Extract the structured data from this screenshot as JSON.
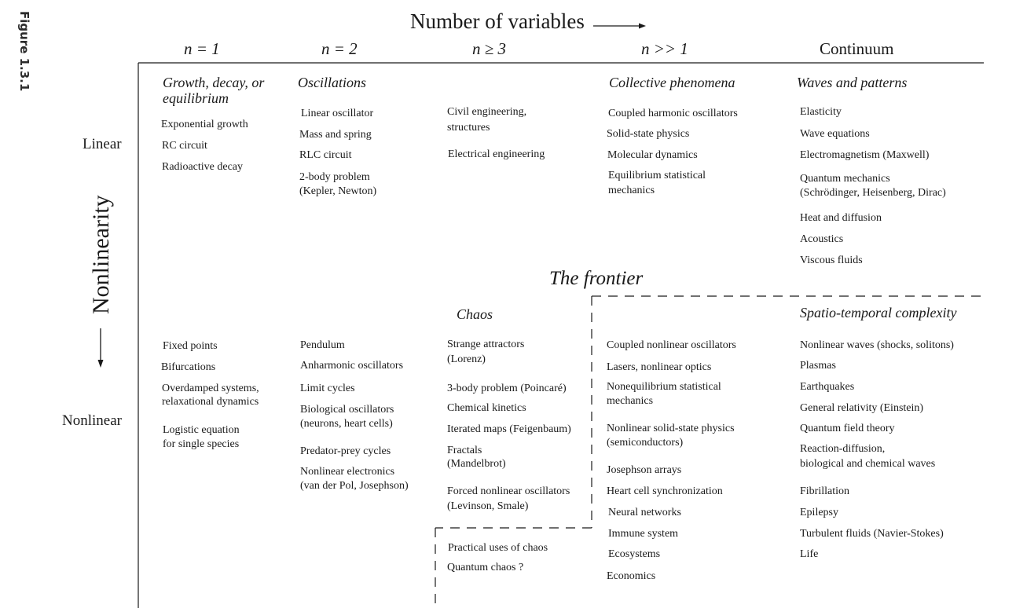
{
  "figure_label": "Figure 1.3.1",
  "top_axis": {
    "title": "Number of variables"
  },
  "side_axis": {
    "title": "Nonlinearity"
  },
  "columns": [
    "n = 1",
    "n = 2",
    "n ≥ 3",
    "n >> 1",
    "Continuum"
  ],
  "rows": {
    "linear": "Linear",
    "nonlinear": "Nonlinear"
  },
  "frontier": "The frontier",
  "linear_cells": {
    "n1": {
      "heading": [
        "Growth, decay, or",
        "equilibrium"
      ],
      "items": [
        "Exponential growth",
        "RC circuit",
        "Radioactive decay"
      ]
    },
    "n2": {
      "heading": [
        "Oscillations"
      ],
      "items": [
        "Linear oscillator",
        "Mass and spring",
        "RLC circuit",
        "2-body problem",
        "(Kepler, Newton)"
      ]
    },
    "n3": {
      "items": [
        "Civil engineering,",
        "structures",
        "Electrical engineering"
      ]
    },
    "nmany": {
      "heading": [
        "Collective phenomena"
      ],
      "items": [
        "Coupled harmonic oscillators",
        "Solid-state physics",
        "Molecular dynamics",
        "Equilibrium statistical",
        "mechanics"
      ]
    },
    "continuum": {
      "heading": [
        "Waves and patterns"
      ],
      "items": [
        "Elasticity",
        "Wave equations",
        "Electromagnetism (Maxwell)",
        "Quantum mechanics",
        "(Schrödinger, Heisenberg, Dirac)",
        "Heat and diffusion",
        "Acoustics",
        "Viscous fluids"
      ]
    }
  },
  "nonlinear_cells": {
    "n1": {
      "items": [
        "Fixed points",
        "Bifurcations",
        "Overdamped systems,",
        "relaxational dynamics",
        "Logistic equation",
        "for single species"
      ]
    },
    "n2": {
      "items": [
        "Pendulum",
        "Anharmonic oscillators",
        "Limit cycles",
        "Biological oscillators",
        "(neurons, heart cells)",
        "Predator-prey cycles",
        "Nonlinear electronics",
        "(van der Pol, Josephson)"
      ]
    },
    "n3": {
      "heading": [
        "Chaos"
      ],
      "items": [
        "Strange attractors",
        "(Lorenz)",
        "3-body problem (Poincaré)",
        "Chemical kinetics",
        "Iterated maps (Feigenbaum)",
        "Fractals",
        "(Mandelbrot)",
        "Forced nonlinear oscillators",
        "(Levinson, Smale)"
      ],
      "extra": [
        "Practical uses of chaos",
        "Quantum chaos ?"
      ]
    },
    "nmany": {
      "items": [
        "Coupled nonlinear oscillators",
        "Lasers, nonlinear optics",
        "Nonequilibrium statistical",
        "mechanics",
        "Nonlinear solid-state physics",
        "(semiconductors)",
        "Josephson arrays",
        "Heart cell synchronization",
        "Neural networks",
        "Immune system",
        "Ecosystems",
        "Economics"
      ]
    },
    "continuum": {
      "heading": [
        "Spatio-temporal complexity"
      ],
      "items": [
        "Nonlinear waves (shocks, solitons)",
        "Plasmas",
        "Earthquakes",
        "General relativity (Einstein)",
        "Quantum field theory",
        "Reaction-diffusion,",
        "biological and chemical waves",
        "Fibrillation",
        "Epilepsy",
        "Turbulent fluids (Navier-Stokes)",
        "Life"
      ]
    }
  }
}
